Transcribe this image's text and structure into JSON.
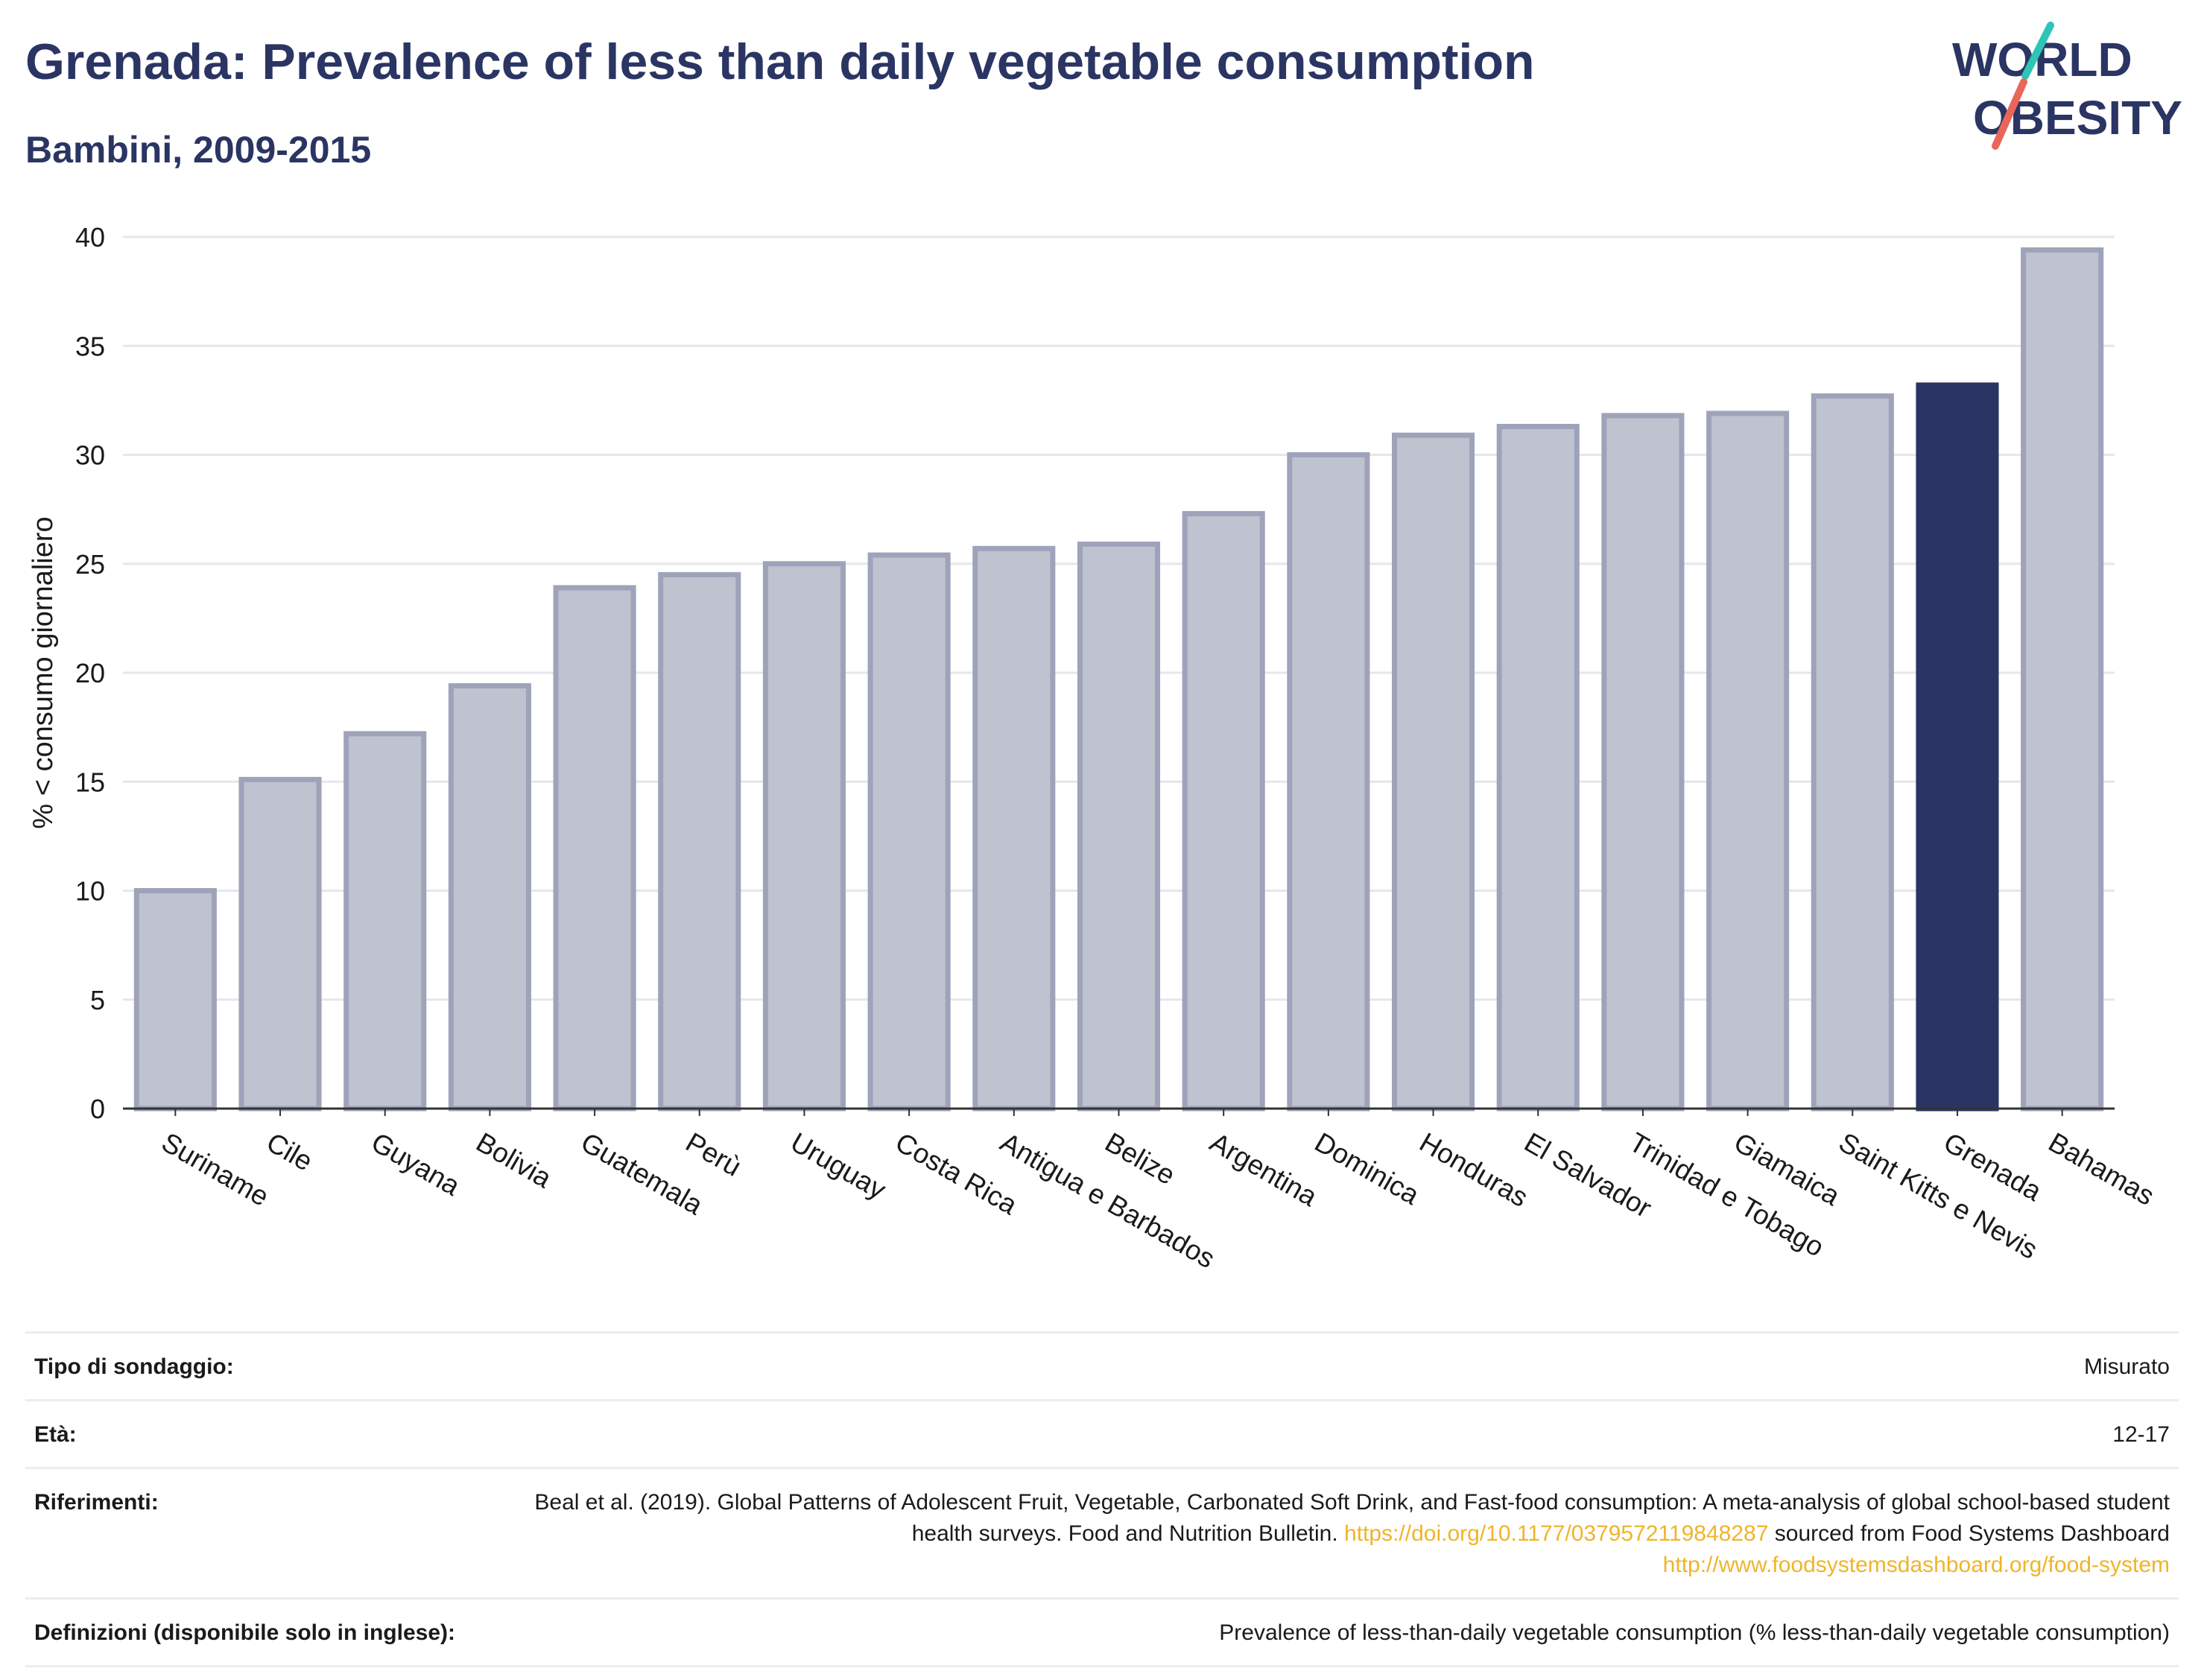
{
  "header": {
    "title": "Grenada: Prevalence of less than daily vegetable consumption",
    "subtitle": "Bambini, 2009-2015",
    "logo_line1": "WORLD",
    "logo_line2": "OBESITY"
  },
  "chart_data": {
    "type": "bar",
    "ylabel": "% < consumo giornaliero",
    "ylim": [
      0,
      40
    ],
    "yticks": [
      0,
      5,
      10,
      15,
      20,
      25,
      30,
      35,
      40
    ],
    "grid": true,
    "categories": [
      "Suriname",
      "Cile",
      "Guyana",
      "Bolivia",
      "Guatemala",
      "Perù",
      "Uruguay",
      "Costa Rica",
      "Antigua e Barbados",
      "Belize",
      "Argentina",
      "Dominica",
      "Honduras",
      "El Salvador",
      "Trinidad e Tobago",
      "Giamaica",
      "Saint Kitts e Nevis",
      "Grenada",
      "Bahamas"
    ],
    "values": [
      10.0,
      15.1,
      17.2,
      19.4,
      23.9,
      24.5,
      25.0,
      25.4,
      25.7,
      25.9,
      27.3,
      30.0,
      30.9,
      31.3,
      31.8,
      31.9,
      32.7,
      33.2,
      39.4
    ],
    "highlight": "Grenada",
    "colors": {
      "bar": "#bfc2cf",
      "bar_border": "#9fa3ba",
      "highlight": "#2b3563"
    }
  },
  "info": {
    "survey_label": "Tipo di sondaggio:",
    "survey_value": "Misurato",
    "age_label": "Età:",
    "age_value": "12-17",
    "ref_label": "Riferimenti:",
    "ref_text": "Beal et al. (2019). Global Patterns of Adolescent Fruit, Vegetable, Carbonated Soft Drink, and Fast-food consumption: A meta-analysis of global school-based student health surveys. Food and Nutrition Bulletin.",
    "ref_link1": "https://doi.org/10.1177/0379572119848287",
    "ref_text2": "sourced from Food Systems Dashboard",
    "ref_link2": "http://www.foodsystemsdashboard.org/food-system",
    "def_label": "Definizioni (disponibile solo in inglese):",
    "def_value": "Prevalence of less-than-daily vegetable consumption (% less-than-daily vegetable consumption)"
  }
}
